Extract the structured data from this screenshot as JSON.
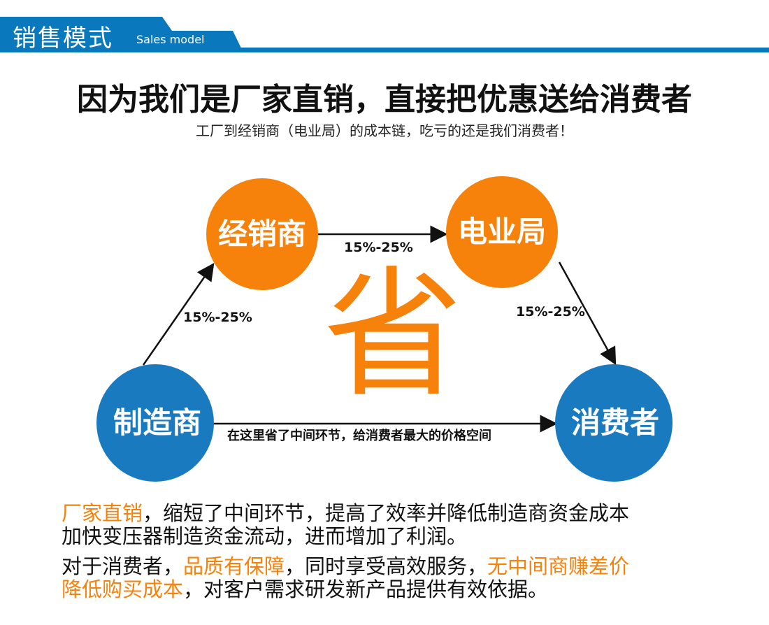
{
  "header": {
    "title": "销售模式",
    "subtitle": "Sales model"
  },
  "headline": "因为我们是厂家直销，直接把优惠送给消费者",
  "subheadline": "工厂到经销商（电业局）的成本链，吃亏的还是我们消费者！",
  "diagram": {
    "nodes": {
      "dealer": "经销商",
      "bureau": "电业局",
      "manufacturer": "制造商",
      "consumer": "消费者"
    },
    "edges": {
      "manufacturer_to_dealer": "15%-25%",
      "dealer_to_bureau": "15%-25%",
      "bureau_to_consumer": "15%-25%",
      "manufacturer_to_consumer": "在这里省了中间环节，给消费者最大的价格空间"
    },
    "center_char": "省"
  },
  "paragraphs": {
    "p1_line1_hl": "厂家直销",
    "p1_line1": "，缩短了中间环节，提高了效率并降低制造商资金成本",
    "p1_line2": "加快变压器制造资金流动，进而增加了利润。",
    "p2_line1_a": "对于消费者，",
    "p2_line1_hl1": "品质有保障",
    "p2_line1_b": "，同时享受高效服务，",
    "p2_line1_hl2": "无中间商赚差价",
    "p2_line2_hl": "降低购买成本",
    "p2_line2": "，对客户需求研发新产品提供有效依据。"
  },
  "colors": {
    "blue": "#0a78bc",
    "orange": "#f6820c",
    "circle_blue": "#1a7abf"
  }
}
